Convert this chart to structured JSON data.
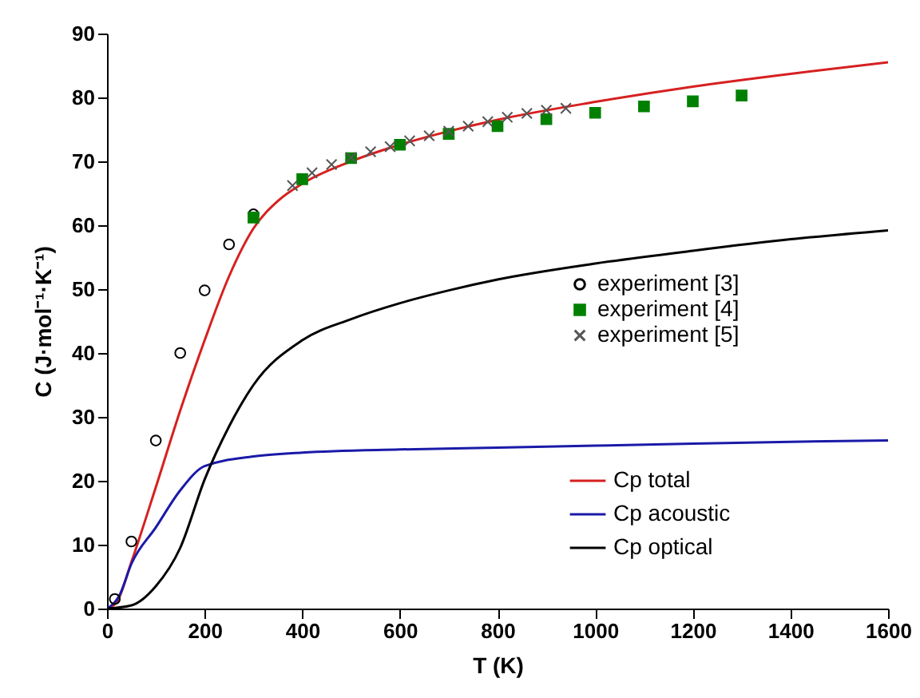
{
  "chart_data": {
    "type": "line",
    "xlabel": "T (K)",
    "ylabel": "C (J·mol⁻¹·K⁻¹)",
    "xlim": [
      0,
      1600
    ],
    "xticks": [
      0,
      200,
      400,
      600,
      800,
      1000,
      1200,
      1400,
      1600
    ],
    "ylim": [
      0,
      90
    ],
    "yticks": [
      0,
      10,
      20,
      30,
      40,
      50,
      60,
      70,
      80,
      90
    ],
    "grid": false,
    "legend": "right",
    "series": [
      {
        "name": "experiment [3]",
        "type": "scatter",
        "marker": "circle",
        "color": "#000000",
        "x": [
          16,
          50,
          100,
          150,
          200,
          250,
          300
        ],
        "values": [
          1.5,
          10.5,
          26.3,
          40,
          49.8,
          57,
          61.7
        ]
      },
      {
        "name": "experiment [4]",
        "type": "scatter",
        "marker": "square",
        "color": "#008000",
        "x": [
          300,
          400,
          500,
          600,
          700,
          800,
          900,
          1000,
          1100,
          1200,
          1300
        ],
        "values": [
          61.2,
          67.2,
          70.5,
          72.6,
          74.3,
          75.5,
          76.6,
          77.6,
          78.6,
          79.4,
          80.3
        ]
      },
      {
        "name": "experiment [5]",
        "type": "scatter",
        "marker": "cross",
        "color": "#555555",
        "x": [
          380,
          420,
          460,
          500,
          540,
          580,
          620,
          660,
          700,
          740,
          780,
          820,
          860,
          900,
          940
        ],
        "values": [
          66.2,
          68.2,
          69.5,
          70.6,
          71.5,
          72.3,
          73.2,
          74,
          74.7,
          75.5,
          76.2,
          76.9,
          77.5,
          78,
          78.3
        ]
      },
      {
        "name": "Cp total",
        "marker": "none",
        "color": "#d62020",
        "x": [
          0,
          20,
          50,
          100,
          150,
          200,
          250,
          300,
          350,
          400,
          500,
          600,
          700,
          800,
          1000,
          1200,
          1400,
          1600
        ],
        "values": [
          0,
          1,
          7.3,
          19,
          31,
          42,
          52,
          59.5,
          63.8,
          66.5,
          70,
          72.6,
          74.7,
          76.5,
          79.3,
          81.7,
          83.7,
          85.5
        ]
      },
      {
        "name": "Cp acoustic",
        "marker": "none",
        "color": "#1a1aa8",
        "x": [
          0,
          25,
          50,
          100,
          150,
          200,
          300,
          400,
          600,
          800,
          1000,
          1200,
          1400,
          1600
        ],
        "values": [
          0,
          2,
          7,
          12.7,
          18.5,
          22.3,
          23.8,
          24.4,
          24.9,
          25.2,
          25.5,
          25.8,
          26.1,
          26.3
        ]
      },
      {
        "name": "Cp optical",
        "marker": "none",
        "color": "#000000",
        "x": [
          0,
          50,
          100,
          150,
          200,
          250,
          300,
          400,
          500,
          600,
          700,
          800,
          1000,
          1200,
          1400,
          1600
        ],
        "values": [
          0,
          0.5,
          3.5,
          9.5,
          20.2,
          28.5,
          35,
          42,
          45.3,
          47.8,
          49.8,
          51.5,
          54,
          56,
          57.8,
          59.2
        ]
      }
    ]
  }
}
